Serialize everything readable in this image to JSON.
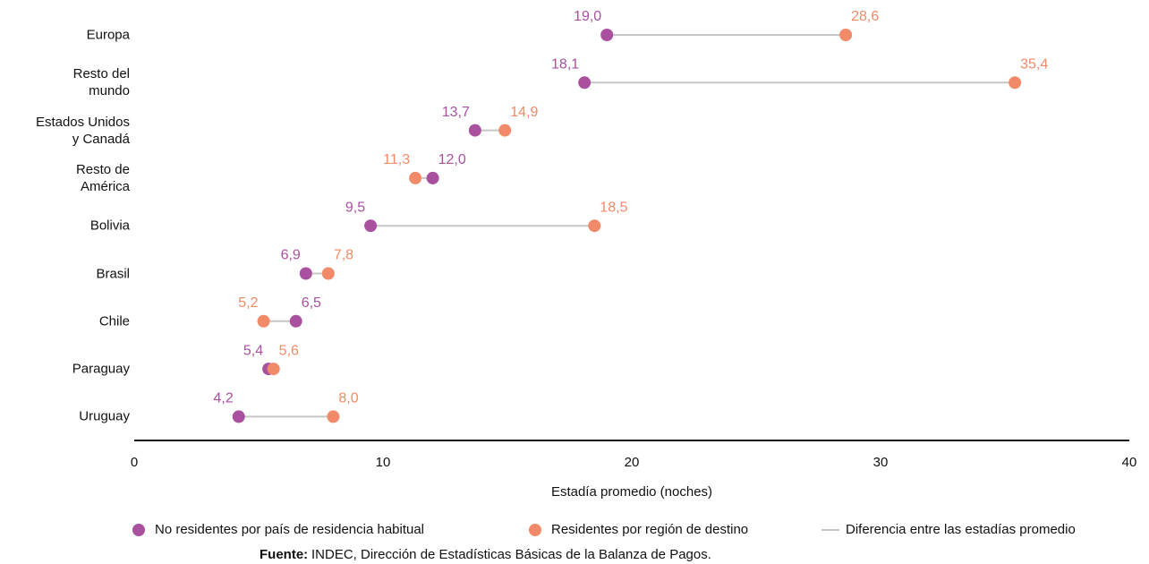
{
  "chart_data": {
    "type": "dumbbell",
    "categories": [
      "Europa",
      "Resto del\nmundo",
      "Estados Unidos\ny Canadá",
      "Resto de\nAmérica",
      "Bolivia",
      "Brasil",
      "Chile",
      "Paraguay",
      "Uruguay"
    ],
    "series": [
      {
        "name": "No residentes por país de residencia habitual",
        "color": "#a9519f",
        "values": [
          19.0,
          18.1,
          13.7,
          12.0,
          9.5,
          6.9,
          6.5,
          5.4,
          4.2
        ],
        "value_labels": [
          "19,0",
          "18,1",
          "13,7",
          "12,0",
          "9,5",
          "6,9",
          "6,5",
          "5,4",
          "4,2"
        ]
      },
      {
        "name": "Residentes por región de destino",
        "color": "#f08a68",
        "values": [
          28.6,
          35.4,
          14.9,
          11.3,
          18.5,
          7.8,
          5.2,
          5.6,
          8.0
        ],
        "value_labels": [
          "28,6",
          "35,4",
          "14,9",
          "11,3",
          "18,5",
          "7,8",
          "5,2",
          "5,6",
          "8,0"
        ]
      }
    ],
    "difference_label": "Diferencia entre las estadías promedio",
    "difference_color": "#c6c6c6",
    "xlabel": "Estadía promedio (noches)",
    "xlim": [
      0,
      40
    ],
    "xticks": [
      0,
      10,
      20,
      30,
      40
    ],
    "grid": false,
    "source_label": "Fuente:",
    "source": "INDEC, Dirección de Estadísticas Básicas de la Balanza de Pagos."
  }
}
